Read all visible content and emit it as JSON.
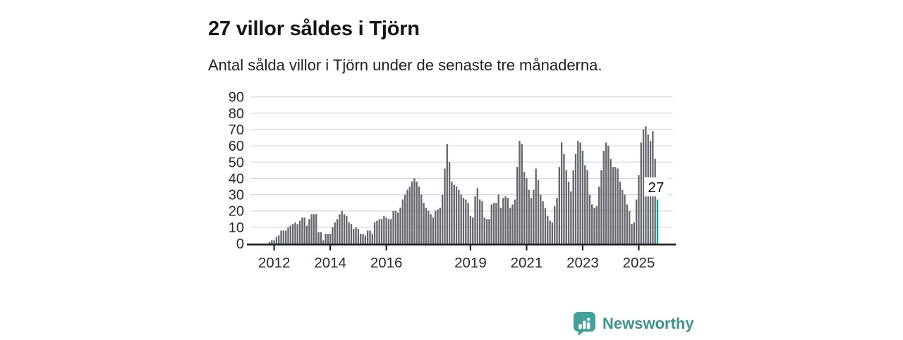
{
  "header": {
    "title": "27 villor såldes i Tjörn",
    "subtitle": "Antal sålda villor i Tjörn under de senaste tre månaderna."
  },
  "chart_data": {
    "type": "bar",
    "title": "27 villor såldes i Tjörn",
    "subtitle": "Antal sålda villor i Tjörn under de senaste tre månaderna.",
    "frequency": "monthly",
    "start_month": "2011-11",
    "values": [
      1,
      2,
      2,
      4,
      5,
      8,
      8,
      8,
      10,
      11,
      12,
      13,
      12,
      14,
      16,
      16,
      11,
      15,
      18,
      18,
      18,
      7,
      7,
      2,
      6,
      6,
      6,
      10,
      13,
      15,
      18,
      20,
      18,
      17,
      13,
      12,
      9,
      10,
      9,
      6,
      6,
      5,
      8,
      8,
      6,
      13,
      14,
      15,
      15,
      17,
      16,
      15,
      15,
      20,
      20,
      19,
      22,
      27,
      30,
      33,
      35,
      38,
      40,
      38,
      35,
      30,
      25,
      22,
      20,
      18,
      16,
      20,
      21,
      22,
      30,
      46,
      61,
      50,
      38,
      36,
      35,
      33,
      30,
      28,
      27,
      25,
      17,
      16,
      29,
      34,
      27,
      26,
      16,
      15,
      15,
      24,
      25,
      25,
      30,
      22,
      28,
      29,
      28,
      22,
      24,
      27,
      47,
      63,
      61,
      44,
      40,
      33,
      28,
      33,
      46,
      39,
      30,
      26,
      22,
      17,
      14,
      13,
      23,
      28,
      47,
      62,
      55,
      45,
      38,
      32,
      45,
      55,
      63,
      62,
      57,
      48,
      45,
      30,
      24,
      22,
      23,
      35,
      45,
      57,
      62,
      60,
      52,
      47,
      47,
      46,
      38,
      33,
      30,
      24,
      20,
      12,
      13,
      27,
      42,
      62,
      70,
      72,
      67,
      63,
      69,
      52,
      27
    ],
    "highlight": {
      "index_last": true,
      "value": 27,
      "label": "27",
      "color": "#00a39a"
    },
    "bar_color": "#64676d",
    "axis_color": "#1f1f1f",
    "grid_color": "#d8d8d8",
    "label_color": "#2b2b2b",
    "grid": true,
    "ylim": [
      0,
      90
    ],
    "y_ticks": [
      0,
      10,
      20,
      30,
      40,
      50,
      60,
      70,
      80,
      90
    ],
    "y_tick_labels": [
      "0",
      "10",
      "20",
      "30",
      "40",
      "50",
      "60",
      "70",
      "80",
      "90"
    ],
    "x_tick_years": [
      2012,
      2014,
      2016,
      2019,
      2021,
      2023,
      2025
    ],
    "x_tick_labels": [
      "2012",
      "2014",
      "2016",
      "2019",
      "2021",
      "2023",
      "2025"
    ]
  },
  "branding": {
    "name": "Newsworthy",
    "logo_icon": "bar-chart-speech-bubble-icon",
    "icon_color": "#43a09a",
    "text_color": "#3c938d"
  }
}
